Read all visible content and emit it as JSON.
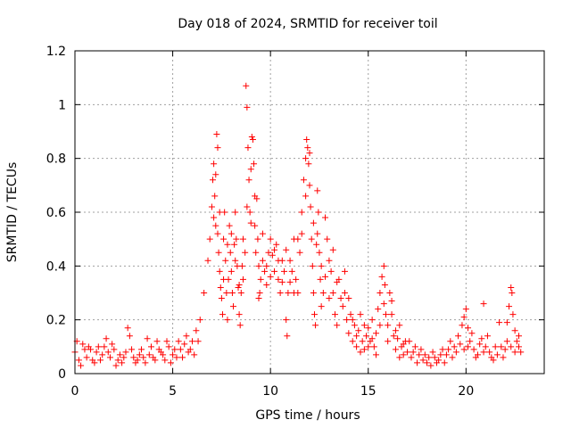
{
  "chart_data": {
    "type": "scatter",
    "title": "Day 018 of 2024, SRMTID for receiver toil",
    "xlabel": "GPS time / hours",
    "ylabel": "SRMTID / TECUs",
    "xlim": [
      0,
      24
    ],
    "ylim": [
      0,
      1.2
    ],
    "x_ticks": [
      0,
      5,
      10,
      15,
      20
    ],
    "x_tick_labels": [
      "0",
      "5",
      "10",
      "15",
      "20"
    ],
    "y_ticks": [
      0,
      0.2,
      0.4,
      0.6,
      0.8,
      1,
      1.2
    ],
    "y_tick_labels": [
      "0",
      "0.2",
      "0.4",
      "0.6",
      "0.8",
      "1",
      "1.2"
    ],
    "grid": true,
    "marker": "+",
    "color": "#ff0000",
    "series": [
      {
        "name": "SRMTID",
        "points": [
          [
            0.0,
            0.08
          ],
          [
            0.2,
            0.05
          ],
          [
            0.4,
            0.11
          ],
          [
            0.6,
            0.06
          ],
          [
            0.8,
            0.09
          ],
          [
            1.0,
            0.04
          ],
          [
            1.2,
            0.1
          ],
          [
            1.4,
            0.07
          ],
          [
            1.6,
            0.13
          ],
          [
            1.8,
            0.06
          ],
          [
            2.0,
            0.09
          ],
          [
            2.2,
            0.05
          ],
          [
            2.4,
            0.04
          ],
          [
            2.6,
            0.08
          ],
          [
            2.8,
            0.14
          ],
          [
            3.0,
            0.06
          ],
          [
            3.2,
            0.05
          ],
          [
            3.4,
            0.09
          ],
          [
            3.6,
            0.04
          ],
          [
            3.8,
            0.07
          ],
          [
            4.0,
            0.06
          ],
          [
            4.2,
            0.12
          ],
          [
            4.4,
            0.08
          ],
          [
            4.6,
            0.05
          ],
          [
            4.8,
            0.1
          ],
          [
            5.0,
            0.07
          ],
          [
            5.2,
            0.06
          ],
          [
            5.4,
            0.09
          ],
          [
            5.6,
            0.11
          ],
          [
            5.8,
            0.08
          ],
          [
            6.0,
            0.12
          ],
          [
            6.2,
            0.16
          ],
          [
            6.4,
            0.2
          ],
          [
            6.6,
            0.3
          ],
          [
            6.8,
            0.42
          ],
          [
            0.1,
            0.12
          ],
          [
            0.3,
            0.03
          ],
          [
            0.5,
            0.09
          ],
          [
            0.7,
            0.1
          ],
          [
            0.9,
            0.05
          ],
          [
            1.1,
            0.08
          ],
          [
            1.3,
            0.05
          ],
          [
            1.5,
            0.1
          ],
          [
            1.7,
            0.08
          ],
          [
            1.9,
            0.11
          ],
          [
            2.1,
            0.03
          ],
          [
            2.3,
            0.07
          ],
          [
            2.5,
            0.06
          ],
          [
            2.7,
            0.17
          ],
          [
            2.9,
            0.09
          ],
          [
            3.1,
            0.04
          ],
          [
            3.3,
            0.07
          ],
          [
            3.5,
            0.06
          ],
          [
            3.7,
            0.13
          ],
          [
            3.9,
            0.1
          ],
          [
            4.1,
            0.05
          ],
          [
            4.3,
            0.09
          ],
          [
            4.5,
            0.07
          ],
          [
            4.7,
            0.12
          ],
          [
            4.9,
            0.04
          ],
          [
            5.1,
            0.09
          ],
          [
            5.3,
            0.12
          ],
          [
            5.5,
            0.06
          ],
          [
            5.7,
            0.14
          ],
          [
            5.9,
            0.09
          ],
          [
            6.1,
            0.07
          ],
          [
            6.3,
            0.12
          ],
          [
            6.9,
            0.5
          ],
          [
            7.0,
            0.62
          ],
          [
            7.05,
            0.72
          ],
          [
            7.1,
            0.78
          ],
          [
            7.15,
            0.66
          ],
          [
            7.2,
            0.55
          ],
          [
            7.25,
            0.89
          ],
          [
            7.3,
            0.84
          ],
          [
            7.35,
            0.45
          ],
          [
            7.4,
            0.38
          ],
          [
            7.45,
            0.32
          ],
          [
            7.5,
            0.28
          ],
          [
            7.55,
            0.22
          ],
          [
            7.6,
            0.5
          ],
          [
            7.65,
            0.6
          ],
          [
            7.7,
            0.42
          ],
          [
            7.75,
            0.3
          ],
          [
            7.8,
            0.2
          ],
          [
            7.85,
            0.35
          ],
          [
            7.9,
            0.55
          ],
          [
            7.95,
            0.45
          ],
          [
            8.0,
            0.38
          ],
          [
            8.05,
            0.3
          ],
          [
            8.1,
            0.25
          ],
          [
            8.15,
            0.48
          ],
          [
            8.2,
            0.6
          ],
          [
            8.25,
            0.5
          ],
          [
            8.3,
            0.4
          ],
          [
            8.35,
            0.32
          ],
          [
            8.4,
            0.22
          ],
          [
            8.45,
            0.18
          ],
          [
            8.5,
            0.3
          ],
          [
            8.55,
            0.4
          ],
          [
            8.6,
            0.35
          ],
          [
            8.7,
            0.45
          ],
          [
            8.75,
            1.07
          ],
          [
            8.8,
            0.99
          ],
          [
            8.85,
            0.84
          ],
          [
            8.9,
            0.72
          ],
          [
            8.95,
            0.6
          ],
          [
            9.0,
            0.56
          ],
          [
            9.05,
            0.88
          ],
          [
            9.1,
            0.87
          ],
          [
            9.15,
            0.78
          ],
          [
            9.2,
            0.55
          ],
          [
            9.25,
            0.45
          ],
          [
            9.3,
            0.65
          ],
          [
            9.35,
            0.5
          ],
          [
            9.4,
            0.4
          ],
          [
            9.45,
            0.3
          ],
          [
            9.5,
            0.35
          ],
          [
            9.6,
            0.42
          ],
          [
            9.7,
            0.38
          ],
          [
            9.8,
            0.33
          ],
          [
            9.9,
            0.45
          ],
          [
            10.0,
            0.5
          ],
          [
            10.1,
            0.44
          ],
          [
            10.2,
            0.38
          ],
          [
            10.3,
            0.48
          ],
          [
            10.4,
            0.35
          ],
          [
            10.5,
            0.3
          ],
          [
            10.6,
            0.42
          ],
          [
            10.7,
            0.38
          ],
          [
            10.8,
            0.2
          ],
          [
            10.85,
            0.14
          ],
          [
            10.9,
            0.3
          ],
          [
            11.0,
            0.42
          ],
          [
            11.1,
            0.38
          ],
          [
            11.2,
            0.5
          ],
          [
            11.3,
            0.35
          ],
          [
            11.4,
            0.3
          ],
          [
            11.5,
            0.45
          ],
          [
            11.6,
            0.6
          ],
          [
            11.7,
            0.72
          ],
          [
            11.8,
            0.8
          ],
          [
            11.85,
            0.87
          ],
          [
            11.9,
            0.84
          ],
          [
            11.95,
            0.78
          ],
          [
            12.0,
            0.7
          ],
          [
            12.05,
            0.62
          ],
          [
            12.1,
            0.5
          ],
          [
            12.15,
            0.4
          ],
          [
            12.2,
            0.3
          ],
          [
            12.25,
            0.22
          ],
          [
            12.3,
            0.18
          ],
          [
            12.35,
            0.48
          ],
          [
            12.4,
            0.68
          ],
          [
            12.45,
            0.6
          ],
          [
            12.5,
            0.45
          ],
          [
            12.55,
            0.35
          ],
          [
            12.6,
            0.25
          ],
          [
            12.7,
            0.3
          ],
          [
            12.8,
            0.58
          ],
          [
            12.9,
            0.5
          ],
          [
            13.0,
            0.42
          ],
          [
            13.1,
            0.38
          ],
          [
            13.2,
            0.3
          ],
          [
            13.3,
            0.22
          ],
          [
            13.4,
            0.18
          ],
          [
            13.5,
            0.35
          ],
          [
            13.6,
            0.28
          ],
          [
            7.1,
            0.58
          ],
          [
            7.2,
            0.74
          ],
          [
            7.3,
            0.52
          ],
          [
            7.4,
            0.6
          ],
          [
            7.6,
            0.35
          ],
          [
            7.8,
            0.48
          ],
          [
            8.0,
            0.52
          ],
          [
            8.2,
            0.42
          ],
          [
            8.4,
            0.33
          ],
          [
            8.6,
            0.5
          ],
          [
            8.8,
            0.62
          ],
          [
            9.0,
            0.76
          ],
          [
            9.2,
            0.66
          ],
          [
            9.4,
            0.28
          ],
          [
            9.6,
            0.52
          ],
          [
            9.8,
            0.4
          ],
          [
            10.0,
            0.36
          ],
          [
            10.2,
            0.46
          ],
          [
            10.4,
            0.42
          ],
          [
            10.6,
            0.34
          ],
          [
            10.8,
            0.46
          ],
          [
            11.0,
            0.34
          ],
          [
            11.2,
            0.3
          ],
          [
            11.4,
            0.5
          ],
          [
            11.6,
            0.52
          ],
          [
            11.8,
            0.66
          ],
          [
            12.0,
            0.82
          ],
          [
            12.2,
            0.56
          ],
          [
            12.4,
            0.52
          ],
          [
            12.6,
            0.4
          ],
          [
            12.8,
            0.36
          ],
          [
            13.0,
            0.28
          ],
          [
            13.2,
            0.46
          ],
          [
            13.4,
            0.34
          ],
          [
            13.7,
            0.25
          ],
          [
            13.8,
            0.3
          ],
          [
            13.9,
            0.2
          ],
          [
            14.0,
            0.15
          ],
          [
            14.1,
            0.22
          ],
          [
            14.2,
            0.12
          ],
          [
            14.3,
            0.18
          ],
          [
            14.4,
            0.1
          ],
          [
            14.5,
            0.16
          ],
          [
            14.6,
            0.22
          ],
          [
            14.7,
            0.12
          ],
          [
            14.8,
            0.09
          ],
          [
            14.9,
            0.14
          ],
          [
            15.0,
            0.17
          ],
          [
            15.1,
            0.12
          ],
          [
            15.2,
            0.2
          ],
          [
            15.3,
            0.1
          ],
          [
            15.4,
            0.15
          ],
          [
            15.5,
            0.24
          ],
          [
            15.6,
            0.3
          ],
          [
            15.7,
            0.36
          ],
          [
            15.8,
            0.4
          ],
          [
            15.85,
            0.33
          ],
          [
            15.9,
            0.22
          ],
          [
            16.0,
            0.18
          ],
          [
            16.1,
            0.3
          ],
          [
            16.2,
            0.27
          ],
          [
            16.3,
            0.14
          ],
          [
            16.4,
            0.09
          ],
          [
            16.5,
            0.13
          ],
          [
            16.6,
            0.18
          ],
          [
            16.7,
            0.1
          ],
          [
            16.8,
            0.07
          ],
          [
            16.9,
            0.12
          ],
          [
            17.0,
            0.08
          ],
          [
            17.2,
            0.06
          ],
          [
            17.4,
            0.1
          ],
          [
            17.6,
            0.07
          ],
          [
            17.8,
            0.05
          ],
          [
            18.0,
            0.04
          ],
          [
            18.2,
            0.03
          ],
          [
            18.4,
            0.06
          ],
          [
            18.6,
            0.05
          ],
          [
            18.8,
            0.09
          ],
          [
            19.0,
            0.07
          ],
          [
            19.2,
            0.12
          ],
          [
            19.4,
            0.1
          ],
          [
            19.6,
            0.14
          ],
          [
            19.8,
            0.18
          ],
          [
            19.9,
            0.21
          ],
          [
            20.0,
            0.24
          ],
          [
            20.1,
            0.17
          ],
          [
            20.2,
            0.12
          ],
          [
            20.4,
            0.09
          ],
          [
            20.6,
            0.07
          ],
          [
            20.8,
            0.13
          ],
          [
            20.9,
            0.26
          ],
          [
            21.0,
            0.1
          ],
          [
            21.2,
            0.08
          ],
          [
            21.4,
            0.05
          ],
          [
            21.6,
            0.07
          ],
          [
            21.8,
            0.1
          ],
          [
            22.0,
            0.09
          ],
          [
            22.1,
            0.19
          ],
          [
            22.2,
            0.25
          ],
          [
            22.3,
            0.32
          ],
          [
            22.35,
            0.3
          ],
          [
            22.4,
            0.22
          ],
          [
            22.5,
            0.16
          ],
          [
            22.6,
            0.12
          ],
          [
            22.7,
            0.1
          ],
          [
            22.8,
            0.08
          ],
          [
            13.8,
            0.38
          ],
          [
            14.0,
            0.28
          ],
          [
            14.2,
            0.2
          ],
          [
            14.4,
            0.14
          ],
          [
            14.6,
            0.08
          ],
          [
            14.8,
            0.18
          ],
          [
            15.0,
            0.1
          ],
          [
            15.2,
            0.13
          ],
          [
            15.4,
            0.07
          ],
          [
            15.6,
            0.18
          ],
          [
            15.8,
            0.26
          ],
          [
            16.0,
            0.12
          ],
          [
            16.2,
            0.22
          ],
          [
            16.4,
            0.16
          ],
          [
            16.6,
            0.06
          ],
          [
            16.8,
            0.11
          ],
          [
            17.1,
            0.12
          ],
          [
            17.3,
            0.08
          ],
          [
            17.5,
            0.04
          ],
          [
            17.7,
            0.09
          ],
          [
            17.9,
            0.07
          ],
          [
            18.1,
            0.06
          ],
          [
            18.3,
            0.08
          ],
          [
            18.5,
            0.04
          ],
          [
            18.7,
            0.07
          ],
          [
            18.9,
            0.04
          ],
          [
            19.1,
            0.09
          ],
          [
            19.3,
            0.06
          ],
          [
            19.5,
            0.08
          ],
          [
            19.7,
            0.11
          ],
          [
            19.9,
            0.09
          ],
          [
            20.1,
            0.1
          ],
          [
            20.3,
            0.15
          ],
          [
            20.5,
            0.06
          ],
          [
            20.7,
            0.11
          ],
          [
            20.9,
            0.08
          ],
          [
            21.1,
            0.14
          ],
          [
            21.3,
            0.06
          ],
          [
            21.5,
            0.1
          ],
          [
            21.7,
            0.19
          ],
          [
            21.9,
            0.06
          ],
          [
            22.1,
            0.12
          ],
          [
            22.3,
            0.1
          ],
          [
            22.5,
            0.08
          ],
          [
            22.7,
            0.14
          ]
        ]
      }
    ]
  }
}
